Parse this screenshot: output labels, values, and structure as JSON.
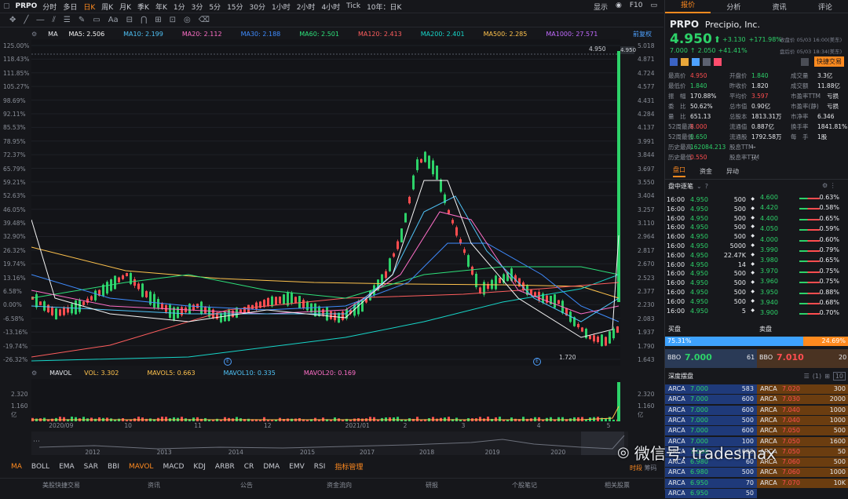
{
  "toolbar": {
    "ticker": "PRPO",
    "periods": [
      "分时",
      "多日",
      "日K",
      "周K",
      "月K",
      "季K",
      "年K",
      "1分",
      "3分",
      "5分",
      "15分",
      "30分",
      "1小时",
      "2小时",
      "4小时",
      "Tick",
      "10年：日K"
    ],
    "active_period": "日K",
    "right": [
      "显示",
      "F10",
      "□□"
    ]
  },
  "ma_bar": {
    "label": "MA",
    "items": [
      {
        "t": "MA5: 2.506",
        "c": "#f5f5f5"
      },
      {
        "t": "MA10: 2.199",
        "c": "#4fc3f7"
      },
      {
        "t": "MA20: 2.112",
        "c": "#ff6fc8"
      },
      {
        "t": "MA30: 2.188",
        "c": "#3f8cff"
      },
      {
        "t": "MA60: 2.501",
        "c": "#2ee07a"
      },
      {
        "t": "MA120: 2.413",
        "c": "#ff5e5e"
      },
      {
        "t": "MA200: 2.401",
        "c": "#17d6c9"
      },
      {
        "t": "MA500: 2.285",
        "c": "#ffc34d"
      },
      {
        "t": "MA1000: 27.571",
        "c": "#c26bff"
      }
    ],
    "restore": "前复权"
  },
  "y_left": [
    "125.00%",
    "118.43%",
    "111.85%",
    "105.27%",
    "98.69%",
    "92.11%",
    "85.53%",
    "78.95%",
    "72.37%",
    "65.79%",
    "59.21%",
    "52.63%",
    "46.05%",
    "39.48%",
    "32.90%",
    "26.32%",
    "19.74%",
    "13.16%",
    "6.58%",
    "0.00%",
    "-6.58%",
    "-13.16%",
    "-19.74%",
    "-26.32%"
  ],
  "y_right": [
    "5.018",
    "4.871",
    "4.724",
    "4.577",
    "4.431",
    "4.284",
    "4.137",
    "3.991",
    "3.844",
    "3.697",
    "3.550",
    "3.404",
    "3.257",
    "3.110",
    "2.964",
    "2.817",
    "2.670",
    "2.523",
    "2.377",
    "2.230",
    "2.083",
    "1.937",
    "1.790",
    "1.643"
  ],
  "price_tag": "4.950",
  "high_tag": "4.950",
  "low_label": "1.720",
  "vol_bar": {
    "label": "MAVOL",
    "items": [
      {
        "t": "VOL: 3.302",
        "c": "#ffc34d"
      },
      {
        "t": "MAVOL5: 0.663",
        "c": "#ffc34d"
      },
      {
        "t": "MAVOL10: 0.335",
        "c": "#4fc3f7"
      },
      {
        "t": "MAVOL20: 0.169",
        "c": "#ff6fc8"
      }
    ],
    "yticks": [
      "2.320",
      "1.160",
      "亿"
    ]
  },
  "x_labels": [
    "2020/09",
    "10",
    "11",
    "12",
    "2021/01",
    "2",
    "3",
    "4",
    "5"
  ],
  "overview_years": [
    "2012",
    "2013",
    "2014",
    "2015",
    "2017",
    "2018",
    "2019",
    "2020"
  ],
  "indicators": [
    "MA",
    "BOLL",
    "EMA",
    "SAR",
    "BBI",
    "MAVOL",
    "MACD",
    "KDJ",
    "ARBR",
    "CR",
    "DMA",
    "EMV",
    "RSI",
    "指标管理"
  ],
  "bottom_nav": [
    "美股快捷交易",
    "资讯",
    "公告",
    "资金流向",
    "研报",
    "个股笔记",
    "相关股票"
  ],
  "bottom_right": [
    "时段",
    "筹码"
  ],
  "panel": {
    "tabs": [
      "报价",
      "分析",
      "资讯",
      "评论"
    ],
    "ticker": "PRPO",
    "name": "Precipio, Inc.",
    "price": "4.950",
    "arrow": "⬆",
    "change": "+3.130",
    "change_pct": "+171.98%",
    "close_note": "收盘价 05/03 16:00(美东)",
    "after_price": "7.000",
    "after_arrow": "↑",
    "after_change": "2.050",
    "after_pct": "+41.41%",
    "after_note": "盘后价 05/03 18:34(美东)",
    "quick_trade": "快捷交易",
    "stats": [
      [
        [
          "最高价",
          "4.950",
          "red"
        ],
        [
          "开盘价",
          "1.840",
          "green"
        ],
        [
          "成交量",
          "3.3亿",
          "white"
        ]
      ],
      [
        [
          "最低价",
          "1.840",
          "green"
        ],
        [
          "昨收价",
          "1.820",
          "white"
        ],
        [
          "成交额",
          "11.88亿",
          "white"
        ]
      ],
      [
        [
          "振　幅",
          "170.88%",
          "white"
        ],
        [
          "平均价",
          "3.597",
          "red"
        ],
        [
          "市盈率TTM",
          "亏损",
          "white"
        ]
      ],
      [
        [
          "委　比",
          "50.62%",
          "white"
        ],
        [
          "总市值",
          "0.90亿",
          "white"
        ],
        [
          "市盈率(静)",
          "亏损",
          "white"
        ]
      ],
      [
        [
          "量　比",
          "651.13",
          "white"
        ],
        [
          "总股本",
          "1813.31万",
          "white"
        ],
        [
          "市净率",
          "6.346",
          "white"
        ]
      ],
      [
        [
          "52周最高",
          "8.000",
          "red"
        ],
        [
          "流通值",
          "0.887亿",
          "white"
        ],
        [
          "换手率",
          "1841.81%",
          "white"
        ]
      ],
      [
        [
          "52周最低",
          "0.650",
          "green"
        ],
        [
          "流通股",
          "1792.58万",
          "white"
        ],
        [
          "每　手",
          "1股",
          "white"
        ]
      ],
      [
        [
          "历史最高",
          "162084.213",
          "green"
        ],
        [
          "股息TTM",
          "--",
          "white"
        ],
        [
          "",
          "",
          " "
        ]
      ],
      [
        [
          "历史最低",
          "0.550",
          "red"
        ],
        [
          "股息率TTM",
          "--",
          "white"
        ],
        [
          "",
          "",
          " "
        ]
      ]
    ],
    "subtabs": [
      "盘口",
      "资金",
      "异动"
    ],
    "trades_label": "盘中逐笔",
    "trades": [
      [
        "16:00",
        "4.950",
        "500"
      ],
      [
        "16:00",
        "4.950",
        "500"
      ],
      [
        "16:00",
        "4.950",
        "500"
      ],
      [
        "16:00",
        "4.950",
        "500"
      ],
      [
        "16:00",
        "4.950",
        "500"
      ],
      [
        "16:00",
        "4.950",
        "5000"
      ],
      [
        "16:00",
        "4.950",
        "22.47K"
      ],
      [
        "16:00",
        "4.950",
        "14"
      ],
      [
        "16:00",
        "4.950",
        "500"
      ],
      [
        "16:00",
        "4.950",
        "500"
      ],
      [
        "16:00",
        "4.950",
        "500"
      ],
      [
        "16:00",
        "4.950",
        "500"
      ],
      [
        "16:00",
        "4.950",
        "5"
      ]
    ],
    "dist": [
      [
        "4.600",
        "0.63%"
      ],
      [
        "4.420",
        "0.58%"
      ],
      [
        "4.400",
        "0.65%"
      ],
      [
        "4.050",
        "0.59%"
      ],
      [
        "4.000",
        "0.60%"
      ],
      [
        "3.990",
        "0.79%"
      ],
      [
        "3.980",
        "0.65%"
      ],
      [
        "3.970",
        "0.75%"
      ],
      [
        "3.960",
        "0.75%"
      ],
      [
        "3.950",
        "0.88%"
      ],
      [
        "3.940",
        "0.68%"
      ],
      [
        "3.900",
        "0.70%"
      ]
    ],
    "buy_label": "买盘",
    "sell_label": "卖盘",
    "buy_pct": "75.31%",
    "sell_pct": "24.69%",
    "buy_ratio": 0.7531,
    "bbo_bid_label": "BBO",
    "bbo_bid": "7.000",
    "bbo_bid_size": "61",
    "bbo_ask_label": "BBO",
    "bbo_ask": "7.010",
    "bbo_ask_size": "20",
    "depth_label": "深度摆盘",
    "depth_count": "(1)",
    "depth_ten": "10",
    "bids": [
      [
        "ARCA",
        "7.000",
        "583"
      ],
      [
        "ARCA",
        "7.000",
        "600"
      ],
      [
        "ARCA",
        "7.000",
        "600"
      ],
      [
        "ARCA",
        "7.000",
        "500"
      ],
      [
        "ARCA",
        "7.000",
        "600"
      ],
      [
        "ARCA",
        "7.000",
        "100"
      ],
      [
        "ARCA",
        "7.000",
        "1000"
      ],
      [
        "ARCA",
        "6.980",
        "60"
      ],
      [
        "ARCA",
        "6.980",
        "500"
      ],
      [
        "ARCA",
        "6.950",
        "70"
      ],
      [
        "ARCA",
        "6.950",
        "50"
      ]
    ],
    "asks": [
      [
        "ARCA",
        "7.020",
        "300"
      ],
      [
        "ARCA",
        "7.030",
        "2000"
      ],
      [
        "ARCA",
        "7.040",
        "1000"
      ],
      [
        "ARCA",
        "7.040",
        "1000"
      ],
      [
        "ARCA",
        "7.050",
        "500"
      ],
      [
        "ARCA",
        "7.050",
        "1600"
      ],
      [
        "ARCA",
        "7.050",
        "50"
      ],
      [
        "ARCA",
        "7.060",
        "500"
      ],
      [
        "ARCA",
        "7.060",
        "1000"
      ],
      [
        "ARCA",
        "7.070",
        "10K"
      ]
    ],
    "watermark": "微信号: tradesmax"
  }
}
